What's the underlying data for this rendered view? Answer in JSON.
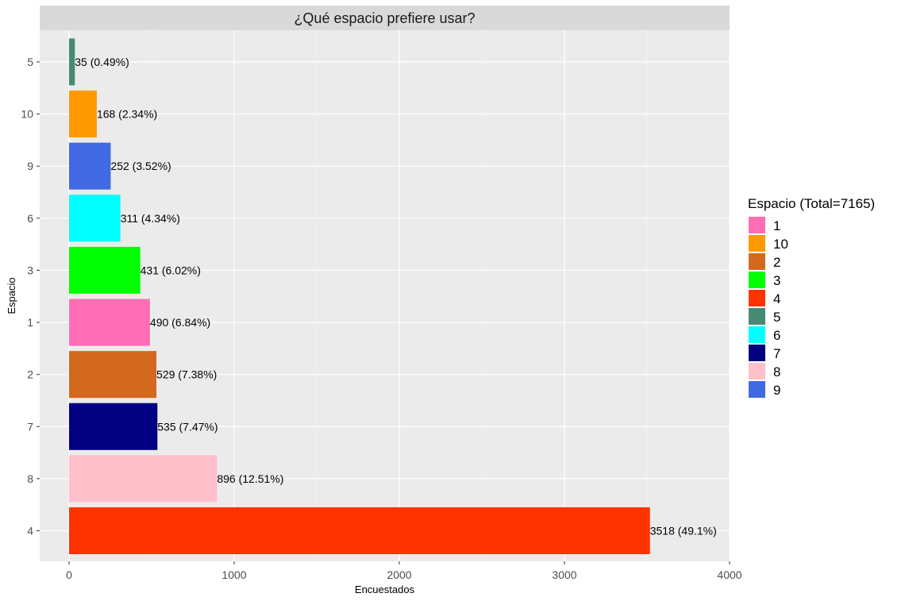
{
  "chart_data": {
    "type": "bar",
    "orientation": "horizontal",
    "title": "¿Qué espacio prefiere usar?",
    "xlabel": "Encuestados",
    "ylabel": "Espacio",
    "xlim": [
      0,
      4000
    ],
    "xticks": [
      0,
      1000,
      2000,
      3000,
      4000
    ],
    "xtick_labels": [
      "0",
      "1000",
      "2000",
      "3000",
      "4000"
    ],
    "categories": [
      "5",
      "10",
      "9",
      "6",
      "3",
      "1",
      "2",
      "7",
      "8",
      "4"
    ],
    "values": [
      35,
      168,
      252,
      311,
      431,
      490,
      529,
      535,
      896,
      3518
    ],
    "data_labels": [
      "35 (0.49%)",
      "168 (2.34%)",
      "252 (3.52%)",
      "311 (4.34%)",
      "431 (6.02%)",
      "490 (6.84%)",
      "529 (7.38%)",
      "535 (7.47%)",
      "896 (12.51%)",
      "3518 (49.1%)"
    ],
    "bar_colors": [
      "#458B74",
      "#FF9900",
      "#4169E1",
      "#00FFFF",
      "#00FF00",
      "#FF6EB4",
      "#D2691E",
      "#000080",
      "#FFC0CB",
      "#FF3300"
    ],
    "legend": {
      "title": "Espacio (Total=7165)",
      "position": "right",
      "entries": [
        {
          "label": "1",
          "color": "#FF6EB4"
        },
        {
          "label": "10",
          "color": "#FF9900"
        },
        {
          "label": "2",
          "color": "#D2691E"
        },
        {
          "label": "3",
          "color": "#00FF00"
        },
        {
          "label": "4",
          "color": "#FF3300"
        },
        {
          "label": "5",
          "color": "#458B74"
        },
        {
          "label": "6",
          "color": "#00FFFF"
        },
        {
          "label": "7",
          "color": "#000080"
        },
        {
          "label": "8",
          "color": "#FFC0CB"
        },
        {
          "label": "9",
          "color": "#4169E1"
        }
      ]
    },
    "grid": true,
    "panel_background": "#EBEBEB",
    "strip_background": "#D9D9D9"
  }
}
